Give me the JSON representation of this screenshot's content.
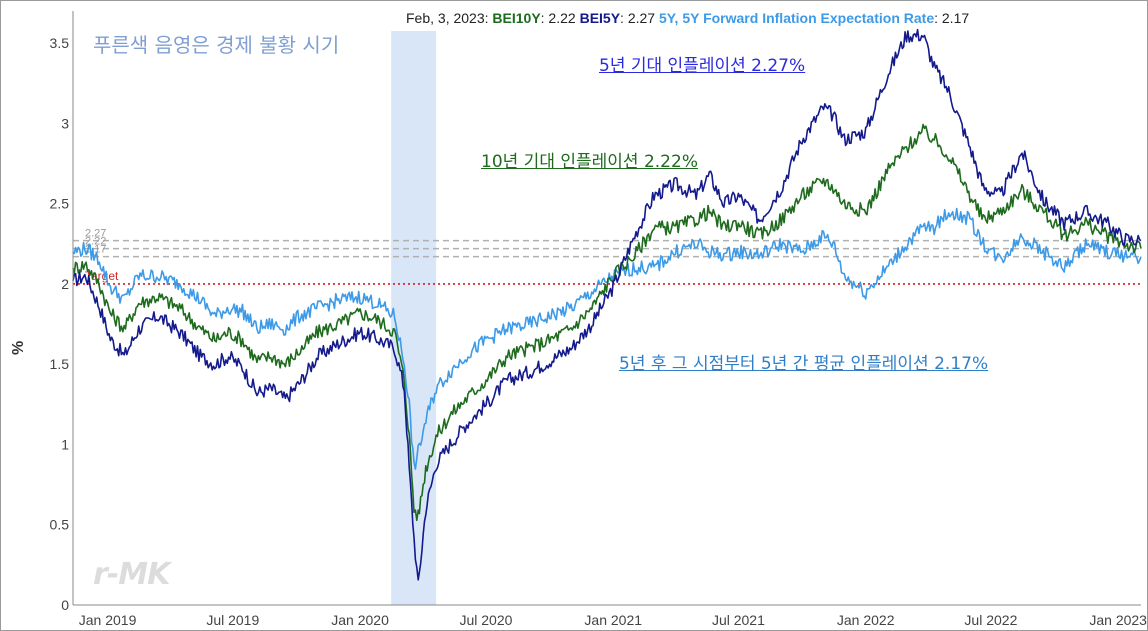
{
  "header": {
    "date": "Feb, 3, 2023:",
    "bei10y_label": "BEI10Y",
    "bei10y_value": ": 2.22",
    "bei5y_label": "BEI5Y",
    "bei5y_value": ": 2.27",
    "fwd_label": "5Y, 5Y Forward Inflation Expectation Rate",
    "fwd_value": ": 2.17"
  },
  "annotations": {
    "recession_note": "푸른색 음영은 경제 불황 시기",
    "bei5y_note": "5년 기대 인플레이션 2.27%",
    "bei10y_note": "10년 기대 인플레이션 2.22%",
    "fwd_note": "5년 후 그 시점부터 5년 간 평균 인플레이션 2.17%",
    "watermark": "r-MK"
  },
  "colors": {
    "bei10y": "#1e6b1e",
    "bei5y": "#141a8c",
    "fwd": "#3d9ae8",
    "target": "#e01818",
    "recession": "#d8e6f7",
    "reference": "#b0b0b0"
  },
  "chart_data": {
    "type": "line",
    "x_ticks": [
      "Jan 2019",
      "Jul 2019",
      "Jan 2020",
      "Jul 2020",
      "Jan 2021",
      "Jul 2021",
      "Jan 2022",
      "Jul 2022",
      "Jan 2023"
    ],
    "y_ticks": [
      "0",
      "0.5",
      "1",
      "1.5",
      "2",
      "2.5",
      "3",
      "3.5"
    ],
    "ylabel": "%",
    "ylim": [
      0,
      3.7
    ],
    "xlim": [
      "2018-11-12",
      "2023-02-03"
    ],
    "recession_band": [
      "2020-02-15",
      "2020-04-20"
    ],
    "target": {
      "label": "Target",
      "value": 2.0
    },
    "reference_lines": [
      {
        "label": "2.27",
        "value": 2.27
      },
      {
        "label": "2.22",
        "value": 2.22
      },
      {
        "label": "2.17",
        "value": 2.17
      }
    ],
    "legend": "none",
    "series": [
      {
        "name": "BEI5Y",
        "x": [
          "2018-11-12",
          "2018-12-01",
          "2018-12-20",
          "2019-01-05",
          "2019-01-25",
          "2019-02-15",
          "2019-03-15",
          "2019-04-15",
          "2019-05-15",
          "2019-06-05",
          "2019-06-25",
          "2019-07-15",
          "2019-08-05",
          "2019-08-25",
          "2019-09-15",
          "2019-10-05",
          "2019-11-01",
          "2019-12-01",
          "2020-01-01",
          "2020-01-25",
          "2020-02-20",
          "2020-03-05",
          "2020-03-12",
          "2020-03-19",
          "2020-03-25",
          "2020-04-05",
          "2020-04-20",
          "2020-05-10",
          "2020-06-01",
          "2020-07-01",
          "2020-08-01",
          "2020-09-01",
          "2020-10-01",
          "2020-11-01",
          "2020-12-01",
          "2021-01-01",
          "2021-02-01",
          "2021-03-01",
          "2021-04-01",
          "2021-05-01",
          "2021-05-20",
          "2021-06-10",
          "2021-07-01",
          "2021-08-01",
          "2021-09-01",
          "2021-10-01",
          "2021-11-01",
          "2021-11-15",
          "2021-12-01",
          "2022-01-01",
          "2022-02-01",
          "2022-03-01",
          "2022-03-25",
          "2022-04-10",
          "2022-05-01",
          "2022-06-01",
          "2022-06-20",
          "2022-07-15",
          "2022-08-15",
          "2022-09-15",
          "2022-10-15",
          "2022-11-15",
          "2022-12-15",
          "2023-01-10",
          "2023-02-03"
        ],
        "values": [
          2.02,
          2.05,
          1.86,
          1.66,
          1.55,
          1.72,
          1.8,
          1.7,
          1.55,
          1.5,
          1.55,
          1.48,
          1.32,
          1.35,
          1.28,
          1.38,
          1.55,
          1.63,
          1.7,
          1.66,
          1.6,
          1.35,
          0.85,
          0.42,
          0.12,
          0.6,
          0.88,
          1.0,
          1.12,
          1.25,
          1.4,
          1.45,
          1.52,
          1.6,
          1.75,
          1.98,
          2.3,
          2.55,
          2.62,
          2.55,
          2.68,
          2.5,
          2.55,
          2.4,
          2.6,
          2.9,
          3.1,
          3.05,
          2.9,
          2.95,
          3.3,
          3.55,
          3.55,
          3.35,
          3.2,
          2.85,
          2.6,
          2.55,
          2.82,
          2.52,
          2.38,
          2.45,
          2.38,
          2.28,
          2.27
        ]
      },
      {
        "name": "BEI10Y",
        "x": [
          "2018-11-12",
          "2018-12-01",
          "2018-12-20",
          "2019-01-05",
          "2019-01-25",
          "2019-02-15",
          "2019-03-15",
          "2019-04-15",
          "2019-05-15",
          "2019-06-05",
          "2019-06-25",
          "2019-07-15",
          "2019-08-05",
          "2019-08-25",
          "2019-09-15",
          "2019-10-05",
          "2019-11-01",
          "2019-12-01",
          "2020-01-01",
          "2020-01-25",
          "2020-02-20",
          "2020-03-05",
          "2020-03-12",
          "2020-03-19",
          "2020-03-25",
          "2020-04-05",
          "2020-04-20",
          "2020-05-10",
          "2020-06-01",
          "2020-07-01",
          "2020-08-01",
          "2020-09-01",
          "2020-10-01",
          "2020-11-01",
          "2020-12-01",
          "2021-01-01",
          "2021-02-01",
          "2021-03-01",
          "2021-04-01",
          "2021-05-01",
          "2021-05-20",
          "2021-06-10",
          "2021-07-01",
          "2021-08-01",
          "2021-09-01",
          "2021-10-01",
          "2021-11-01",
          "2021-11-15",
          "2021-12-01",
          "2022-01-01",
          "2022-02-01",
          "2022-03-01",
          "2022-03-25",
          "2022-04-10",
          "2022-05-01",
          "2022-06-01",
          "2022-06-20",
          "2022-07-15",
          "2022-08-15",
          "2022-09-15",
          "2022-10-15",
          "2022-11-15",
          "2022-12-15",
          "2023-01-10",
          "2023-02-03"
        ],
        "values": [
          2.1,
          2.12,
          2.0,
          1.82,
          1.72,
          1.88,
          1.92,
          1.85,
          1.72,
          1.65,
          1.7,
          1.65,
          1.52,
          1.55,
          1.5,
          1.58,
          1.7,
          1.75,
          1.82,
          1.78,
          1.7,
          1.4,
          1.05,
          0.6,
          0.55,
          0.85,
          1.05,
          1.18,
          1.28,
          1.4,
          1.55,
          1.6,
          1.65,
          1.72,
          1.85,
          2.05,
          2.18,
          2.35,
          2.35,
          2.4,
          2.45,
          2.35,
          2.38,
          2.3,
          2.4,
          2.55,
          2.65,
          2.6,
          2.5,
          2.45,
          2.7,
          2.85,
          2.95,
          2.9,
          2.8,
          2.55,
          2.4,
          2.45,
          2.58,
          2.45,
          2.3,
          2.38,
          2.3,
          2.25,
          2.22
        ]
      },
      {
        "name": "5Y, 5Y Forward Inflation Expectation Rate",
        "x": [
          "2018-11-12",
          "2018-12-01",
          "2018-12-20",
          "2019-01-05",
          "2019-01-25",
          "2019-02-15",
          "2019-03-15",
          "2019-04-15",
          "2019-05-15",
          "2019-06-05",
          "2019-06-25",
          "2019-07-15",
          "2019-08-05",
          "2019-08-25",
          "2019-09-15",
          "2019-10-05",
          "2019-11-01",
          "2019-12-01",
          "2020-01-01",
          "2020-01-25",
          "2020-02-20",
          "2020-03-05",
          "2020-03-12",
          "2020-03-19",
          "2020-03-25",
          "2020-04-05",
          "2020-04-20",
          "2020-05-10",
          "2020-06-01",
          "2020-07-01",
          "2020-08-01",
          "2020-09-01",
          "2020-10-01",
          "2020-11-01",
          "2020-12-01",
          "2021-01-01",
          "2021-02-01",
          "2021-03-01",
          "2021-04-01",
          "2021-05-01",
          "2021-05-20",
          "2021-06-10",
          "2021-07-01",
          "2021-08-01",
          "2021-09-01",
          "2021-10-01",
          "2021-11-01",
          "2021-11-15",
          "2021-12-01",
          "2022-01-01",
          "2022-02-01",
          "2022-03-01",
          "2022-03-25",
          "2022-04-10",
          "2022-05-01",
          "2022-06-01",
          "2022-06-20",
          "2022-07-15",
          "2022-08-15",
          "2022-09-15",
          "2022-10-15",
          "2022-11-15",
          "2022-12-15",
          "2023-01-10",
          "2023-02-03"
        ],
        "values": [
          2.2,
          2.22,
          2.15,
          1.98,
          1.9,
          2.05,
          2.05,
          2.0,
          1.9,
          1.8,
          1.85,
          1.83,
          1.72,
          1.75,
          1.72,
          1.8,
          1.85,
          1.9,
          1.92,
          1.88,
          1.8,
          1.5,
          1.25,
          0.85,
          0.95,
          1.15,
          1.35,
          1.45,
          1.55,
          1.65,
          1.72,
          1.75,
          1.8,
          1.85,
          1.95,
          2.05,
          2.1,
          2.1,
          2.2,
          2.25,
          2.2,
          2.18,
          2.2,
          2.18,
          2.25,
          2.2,
          2.3,
          2.25,
          2.05,
          1.95,
          2.1,
          2.25,
          2.35,
          2.35,
          2.45,
          2.4,
          2.25,
          2.15,
          2.3,
          2.2,
          2.1,
          2.25,
          2.2,
          2.18,
          2.17
        ]
      }
    ]
  }
}
